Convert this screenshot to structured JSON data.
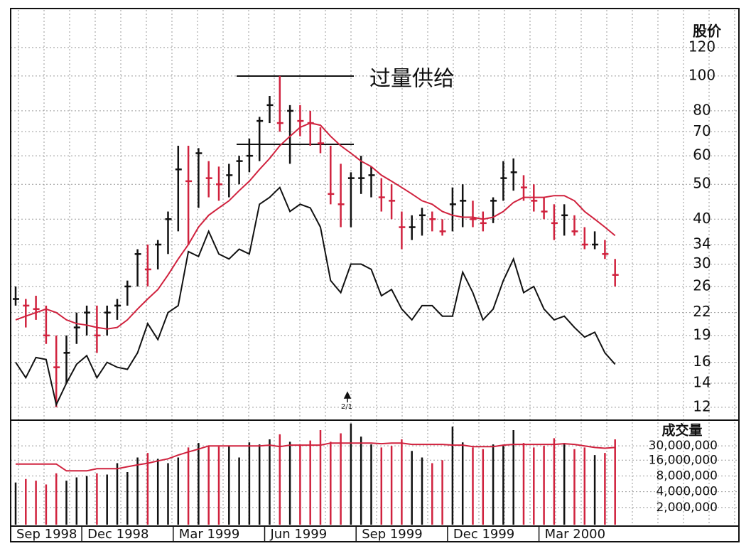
{
  "chart_data": [
    {
      "type": "ohlc",
      "y_label": "股价",
      "annotation": "过量供给",
      "event_label": "2/1",
      "categories": [
        "Sep 1998",
        null,
        null,
        null,
        null,
        null,
        null,
        "Dec 1998",
        null,
        null,
        null,
        null,
        null,
        null,
        null,
        null,
        "Mar 1999",
        null,
        null,
        null,
        null,
        null,
        null,
        null,
        null,
        "Jun 1999",
        null,
        null,
        null,
        null,
        null,
        null,
        null,
        null,
        "Sep 1999",
        null,
        null,
        null,
        null,
        null,
        null,
        null,
        null,
        "Dec 1999",
        null,
        null,
        null,
        null,
        null,
        null,
        null,
        null,
        "Mar 2000",
        null,
        null,
        null,
        null,
        null,
        null,
        null
      ],
      "high": [
        26,
        24,
        24.5,
        23,
        19,
        19,
        22,
        23,
        23,
        23,
        24,
        27,
        33,
        34,
        35,
        42,
        64,
        64,
        63,
        58,
        56,
        57,
        60,
        67,
        77,
        88,
        100,
        83,
        83,
        80,
        72,
        64,
        57,
        54,
        60,
        56,
        52,
        50,
        42,
        41,
        43,
        42,
        40,
        49,
        50,
        45,
        42,
        46,
        58,
        59,
        53,
        50,
        46,
        44,
        44,
        41,
        38,
        37,
        35,
        31
      ],
      "low": [
        23,
        20,
        21,
        18,
        12,
        14,
        18,
        19,
        17,
        19,
        21,
        23,
        26,
        26,
        29,
        32,
        37,
        34,
        43,
        46,
        45,
        46,
        50,
        54,
        58,
        74,
        70,
        57,
        68,
        64,
        61,
        44,
        38,
        38,
        47,
        46,
        42,
        40,
        33,
        35,
        36,
        37,
        36,
        37,
        38,
        38,
        37,
        39,
        45,
        48,
        45,
        42,
        40,
        35,
        36,
        36,
        33,
        33,
        31,
        26
      ],
      "close": [
        24,
        23,
        22.5,
        19,
        15.5,
        17,
        20,
        22,
        19,
        22,
        23,
        26,
        32,
        29,
        34,
        40,
        55,
        51,
        61,
        52,
        50,
        53,
        58,
        60,
        75,
        83,
        74,
        80,
        75,
        74,
        65,
        47,
        44,
        52,
        52,
        53,
        46,
        45,
        38,
        38,
        41,
        40,
        37,
        44,
        45,
        40,
        39,
        45,
        52,
        54,
        49,
        45,
        42,
        39,
        41,
        37,
        34,
        34,
        32,
        28
      ],
      "moving_average": {
        "color": "#d0223e",
        "values": [
          21,
          21.5,
          22,
          22.5,
          22,
          21,
          20.5,
          20.3,
          20,
          19.8,
          20,
          21,
          22.5,
          24,
          25.5,
          28,
          31,
          34,
          38,
          41,
          43,
          45,
          48,
          51,
          55,
          59,
          64,
          68,
          72,
          74,
          73,
          68,
          64,
          61,
          58,
          56,
          53,
          51,
          49,
          47,
          45,
          44,
          42,
          41,
          40.5,
          40.5,
          40,
          40.5,
          42,
          44.5,
          46,
          46,
          46,
          46.5,
          46.5,
          45,
          42,
          40,
          38,
          36
        ]
      },
      "relative_strength": {
        "color": "#111111",
        "values": [
          16,
          14.5,
          16.5,
          16.3,
          12.2,
          14,
          15.8,
          16.7,
          14.5,
          16,
          15.5,
          15.3,
          17,
          20.5,
          18.5,
          22,
          23,
          32.5,
          31.5,
          37,
          32,
          31,
          33,
          32,
          44,
          46,
          49,
          42,
          44,
          43,
          38,
          27,
          25,
          30,
          30,
          29,
          24.5,
          25.5,
          22.5,
          21,
          23,
          23,
          21.5,
          21.5,
          28.5,
          25,
          21,
          22.5,
          27,
          31,
          25,
          26,
          22.5,
          21,
          21.5,
          20,
          18.8,
          19.4,
          17,
          15.8
        ]
      },
      "up_color": "#111111",
      "down_color": "#d0223e",
      "log_scale": true,
      "ylim": [
        11.1,
        154
      ],
      "yticks": [
        12,
        14,
        16,
        19,
        22,
        26,
        30,
        34,
        40,
        50,
        60,
        70,
        80,
        100,
        120
      ],
      "grid": true
    },
    {
      "type": "bar",
      "y_label": "成交量",
      "values": [
        6000000,
        7000000,
        6500000,
        5500000,
        9000000,
        6500000,
        7500000,
        8000000,
        9000000,
        8500000,
        14000000,
        9500000,
        18000000,
        22000000,
        17000000,
        14000000,
        18000000,
        28000000,
        34000000,
        30000000,
        29000000,
        30000000,
        18000000,
        35000000,
        32000000,
        40000000,
        50000000,
        36000000,
        32000000,
        38000000,
        60000000,
        36000000,
        52000000,
        80000000,
        45000000,
        32000000,
        28000000,
        30000000,
        40000000,
        24000000,
        18000000,
        14000000,
        16000000,
        70000000,
        35000000,
        28000000,
        26000000,
        32000000,
        30000000,
        60000000,
        34000000,
        28000000,
        30000000,
        42000000,
        34000000,
        26000000,
        28000000,
        20000000,
        22000000,
        40000000
      ],
      "moving_average": {
        "color": "#d0223e",
        "values": [
          13500000,
          13500000,
          13500000,
          13500000,
          13500000,
          10000000,
          10000000,
          10000000,
          11000000,
          11000000,
          11000000,
          12000000,
          13000000,
          14000000,
          15500000,
          17000000,
          20000000,
          23000000,
          26000000,
          30000000,
          30000000,
          30000000,
          30000000,
          30000000,
          30000000,
          31000000,
          29000000,
          31000000,
          31000000,
          31000000,
          31000000,
          34000000,
          34000000,
          34000000,
          34000000,
          34000000,
          33000000,
          34000000,
          34000000,
          32000000,
          32000000,
          32000000,
          32000000,
          31000000,
          31000000,
          29000000,
          29000000,
          29000000,
          31000000,
          32000000,
          32000000,
          32000000,
          32000000,
          32000000,
          33000000,
          32000000,
          30000000,
          28000000,
          27000000,
          28000000
        ]
      },
      "log_scale": true,
      "ylim": [
        940000,
        90000000
      ],
      "yticks": [
        {
          "value": 2000000,
          "label": "2,000,000"
        },
        {
          "value": 4000000,
          "label": "4,000,000"
        },
        {
          "value": 8000000,
          "label": "8,000,000"
        },
        {
          "value": 16000000,
          "label": "16,000,000"
        },
        {
          "value": 30000000,
          "label": "30,000,000"
        }
      ],
      "grid": true
    }
  ]
}
